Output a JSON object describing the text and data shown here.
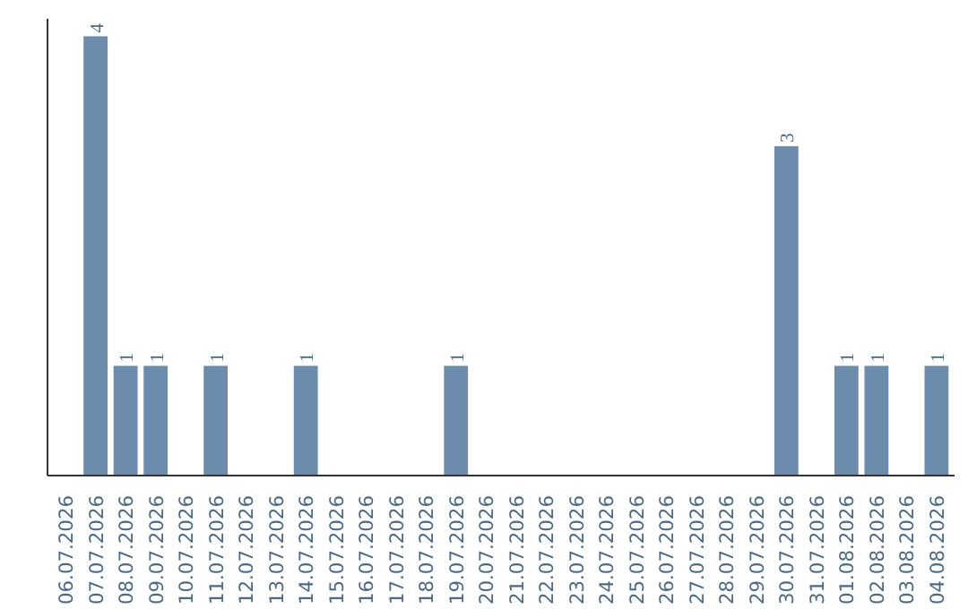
{
  "chart_data": {
    "type": "bar",
    "categories": [
      "06.07.2026",
      "07.07.2026",
      "08.07.2026",
      "09.07.2026",
      "10.07.2026",
      "11.07.2026",
      "12.07.2026",
      "13.07.2026",
      "14.07.2026",
      "15.07.2026",
      "16.07.2026",
      "17.07.2026",
      "18.07.2026",
      "19.07.2026",
      "20.07.2026",
      "21.07.2026",
      "22.07.2026",
      "23.07.2026",
      "24.07.2026",
      "25.07.2026",
      "26.07.2026",
      "27.07.2026",
      "28.07.2026",
      "29.07.2026",
      "30.07.2026",
      "31.07.2026",
      "01.08.2026",
      "02.08.2026",
      "03.08.2026",
      "04.08.2026"
    ],
    "values": [
      0,
      4,
      1,
      1,
      0,
      1,
      0,
      0,
      1,
      0,
      0,
      0,
      0,
      1,
      0,
      0,
      0,
      0,
      0,
      0,
      0,
      0,
      0,
      0,
      3,
      0,
      1,
      1,
      0,
      1
    ],
    "value_labels": [
      null,
      "4",
      "1",
      "1",
      null,
      "1",
      null,
      null,
      "1",
      null,
      null,
      null,
      null,
      "1",
      null,
      null,
      null,
      null,
      null,
      null,
      null,
      null,
      null,
      null,
      "3",
      null,
      "1",
      "1",
      null,
      "1"
    ],
    "color": "#6b8cac",
    "grid": false
  }
}
